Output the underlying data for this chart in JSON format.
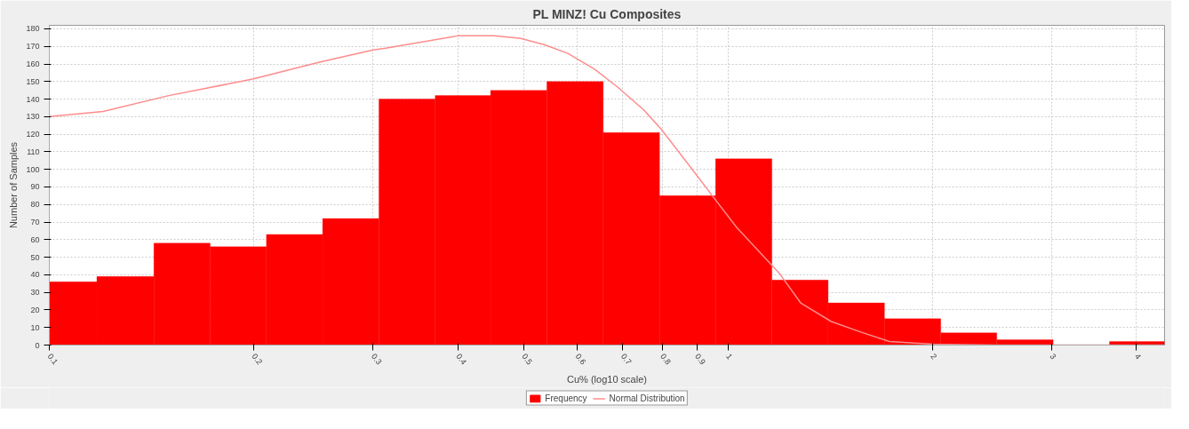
{
  "chart_data": {
    "type": "histogram",
    "title": "PL MINZ! Cu Composites",
    "xlabel": "Cu% (log10 scale)",
    "ylabel": "Number of Samples",
    "log": "x",
    "xlim": [
      0.1,
      4.4
    ],
    "xticks": [
      0.1,
      0.2,
      0.3,
      0.4,
      0.5,
      0.6,
      0.7,
      0.8,
      0.9,
      1,
      2,
      3,
      4
    ],
    "ylim": [
      0,
      182
    ],
    "yticks": [
      0,
      10,
      20,
      30,
      40,
      50,
      60,
      70,
      80,
      90,
      100,
      110,
      120,
      130,
      140,
      150,
      160,
      170,
      180
    ],
    "grid": true,
    "legend": "bottom",
    "series": [
      {
        "name": "Frequency",
        "color": "#ff0000",
        "bins": [
          0.1,
          0.1175,
          0.1426,
          0.1726,
          0.2089,
          0.2528,
          0.306,
          0.3704,
          0.447,
          0.541,
          0.655,
          0.793,
          0.959,
          1.161,
          1.405,
          1.701,
          2.059,
          2.49,
          3.015,
          3.65,
          4.4
        ],
        "values": [
          36,
          39,
          58,
          56,
          63,
          72,
          140,
          142,
          145,
          150,
          121,
          85,
          106,
          37,
          24,
          15,
          7,
          3,
          0,
          2
        ]
      },
      {
        "type": "line",
        "name": "Normal Distribution",
        "color": "#ff8c8c",
        "x": [
          0.1,
          0.12,
          0.15,
          0.2,
          0.25,
          0.3,
          0.313,
          0.4,
          0.452,
          0.495,
          0.536,
          0.581,
          0.636,
          0.687,
          0.751,
          0.797,
          0.882,
          0.944,
          1.03,
          1.19,
          1.28,
          1.42,
          1.57,
          1.73,
          2.01,
          2.5,
          3.0,
          4.4
        ],
        "values": [
          130,
          133,
          142,
          151.5,
          161,
          168,
          169,
          176,
          176,
          174.5,
          171,
          166,
          157,
          147,
          134,
          123,
          101,
          86,
          67,
          41,
          24,
          13.4,
          7.4,
          2,
          0.5,
          0,
          0,
          0
        ]
      }
    ]
  }
}
